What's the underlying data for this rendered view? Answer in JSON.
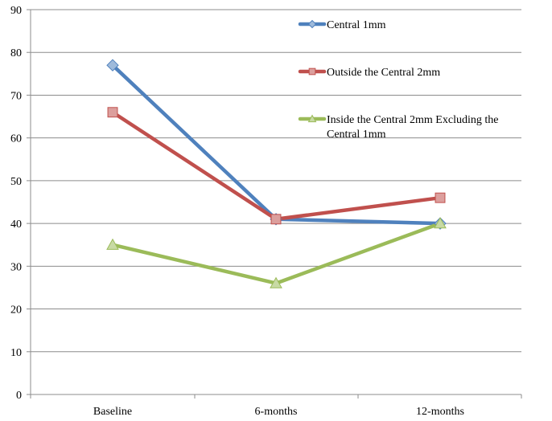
{
  "chart_data": {
    "type": "line",
    "categories": [
      "Baseline",
      "6-months",
      "12-months"
    ],
    "series": [
      {
        "name": "Central 1mm",
        "values": [
          77,
          41,
          40
        ],
        "color": "#4F81BD",
        "marker": "diamond"
      },
      {
        "name": "Outside the Central 2mm",
        "values": [
          66,
          41,
          46
        ],
        "color": "#C0504D",
        "marker": "square"
      },
      {
        "name": [
          "Inside the Central 2mm Excluding the",
          "Central 1mm"
        ],
        "values": [
          35,
          26,
          40
        ],
        "color": "#9BBB59",
        "marker": "triangle"
      }
    ],
    "ylim": [
      0,
      90
    ],
    "yticks": [
      0,
      10,
      20,
      30,
      40,
      50,
      60,
      70,
      80,
      90
    ],
    "grid": true,
    "legend": "top-right"
  }
}
